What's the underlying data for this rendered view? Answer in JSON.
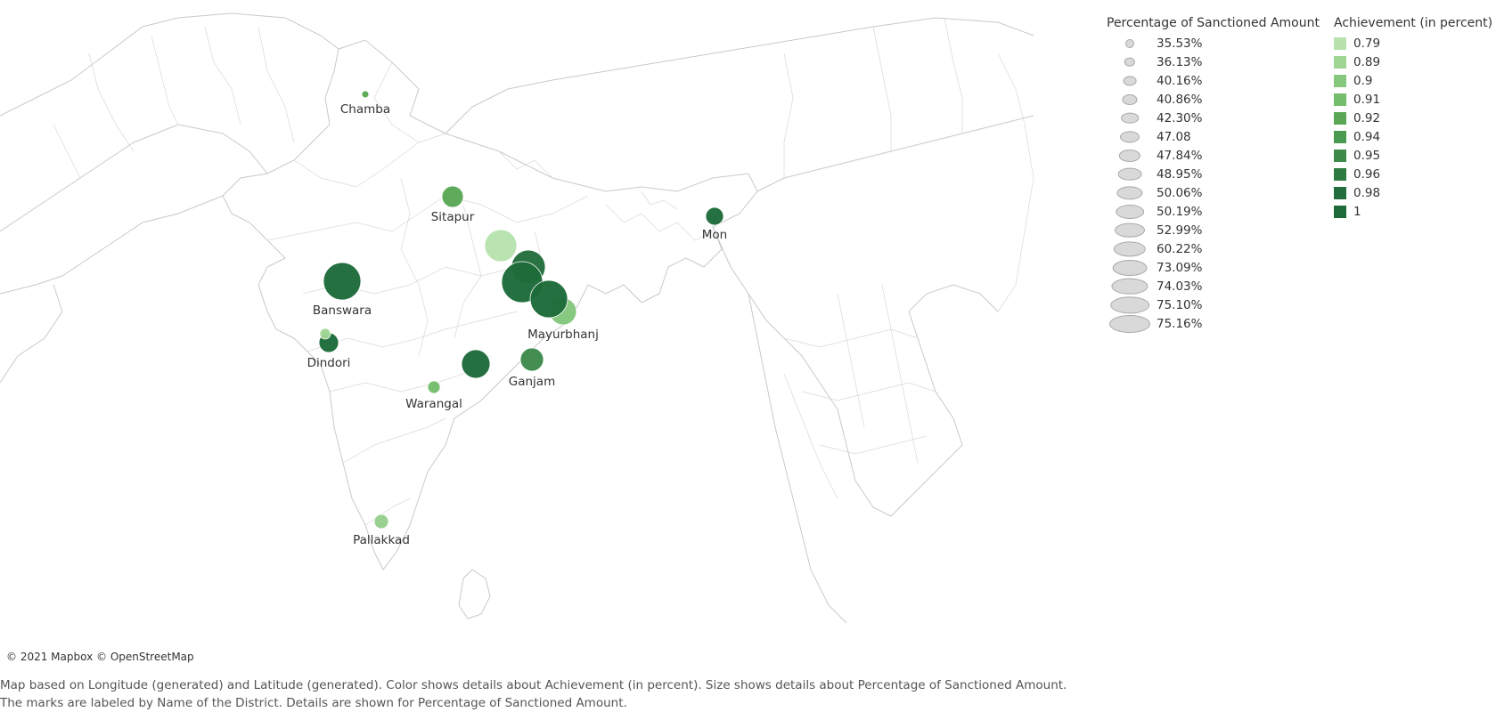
{
  "map": {
    "copyright": "© 2021 Mapbox © OpenStreetMap",
    "caption": "Map based on Longitude (generated) and Latitude (generated).  Color shows details about Achievement (in percent).  Size shows details about Percentage of Sanctioned Amount.  The marks are labeled by Name of the District.  Details are shown for Percentage of Sanctioned Amount."
  },
  "markers": [
    {
      "district": "Chamba",
      "label": "Chamba",
      "color": "#5aa856"
    },
    {
      "district": "Sitapur",
      "label": "Sitapur",
      "color": "#5aa856"
    },
    {
      "district": "Mon",
      "label": "Mon",
      "color": "#1e6b3a"
    },
    {
      "district": "Banswara",
      "label": "Banswara",
      "color": "#1e6b3a"
    },
    {
      "district": "Dindori",
      "label": "Dindori",
      "color": "#1e6b3a"
    },
    {
      "district": "Mayurbhanj",
      "label": "Mayurbhanj",
      "color": "#84c77d"
    },
    {
      "district": "Ganjam",
      "label": "Ganjam",
      "color": "#3d8a4a"
    },
    {
      "district": "Warangal",
      "label": "Warangal",
      "color": "#74bd6c"
    },
    {
      "district": "Pallakkad",
      "label": "Pallakkad",
      "color": "#97d08e"
    },
    {
      "district": "",
      "label": "",
      "color": "#b7e2ad"
    },
    {
      "district": "",
      "label": "",
      "color": "#246e3d"
    },
    {
      "district": "",
      "label": "",
      "color": "#1e6b3a"
    },
    {
      "district": "",
      "label": "",
      "color": "#1e6b3a"
    },
    {
      "district": "",
      "label": "",
      "color": "#1e6b3a"
    },
    {
      "district": "",
      "label": "",
      "color": "#9fd693"
    }
  ],
  "size_legend": {
    "title": "Percentage of Sanctioned Amount",
    "items": [
      "35.53%",
      "36.13%",
      "40.16%",
      "40.86%",
      "42.30%",
      "47.08",
      "47.84%",
      "48.95%",
      "50.06%",
      "50.19%",
      "52.99%",
      "60.22%",
      "73.09%",
      "74.03%",
      "75.10%",
      "75.16%"
    ]
  },
  "color_legend": {
    "title": "Achievement (in percent)",
    "items": [
      {
        "label": "0.79",
        "color": "#b7e2ad"
      },
      {
        "label": "0.89",
        "color": "#9fd693"
      },
      {
        "label": "0.9",
        "color": "#84c77d"
      },
      {
        "label": "0.91",
        "color": "#74bd6c"
      },
      {
        "label": "0.92",
        "color": "#5aa856"
      },
      {
        "label": "0.94",
        "color": "#4a9a50"
      },
      {
        "label": "0.95",
        "color": "#3d8a4a"
      },
      {
        "label": "0.96",
        "color": "#2e7b42"
      },
      {
        "label": "0.98",
        "color": "#246e3d"
      },
      {
        "label": "1",
        "color": "#1e6b3a"
      }
    ]
  }
}
